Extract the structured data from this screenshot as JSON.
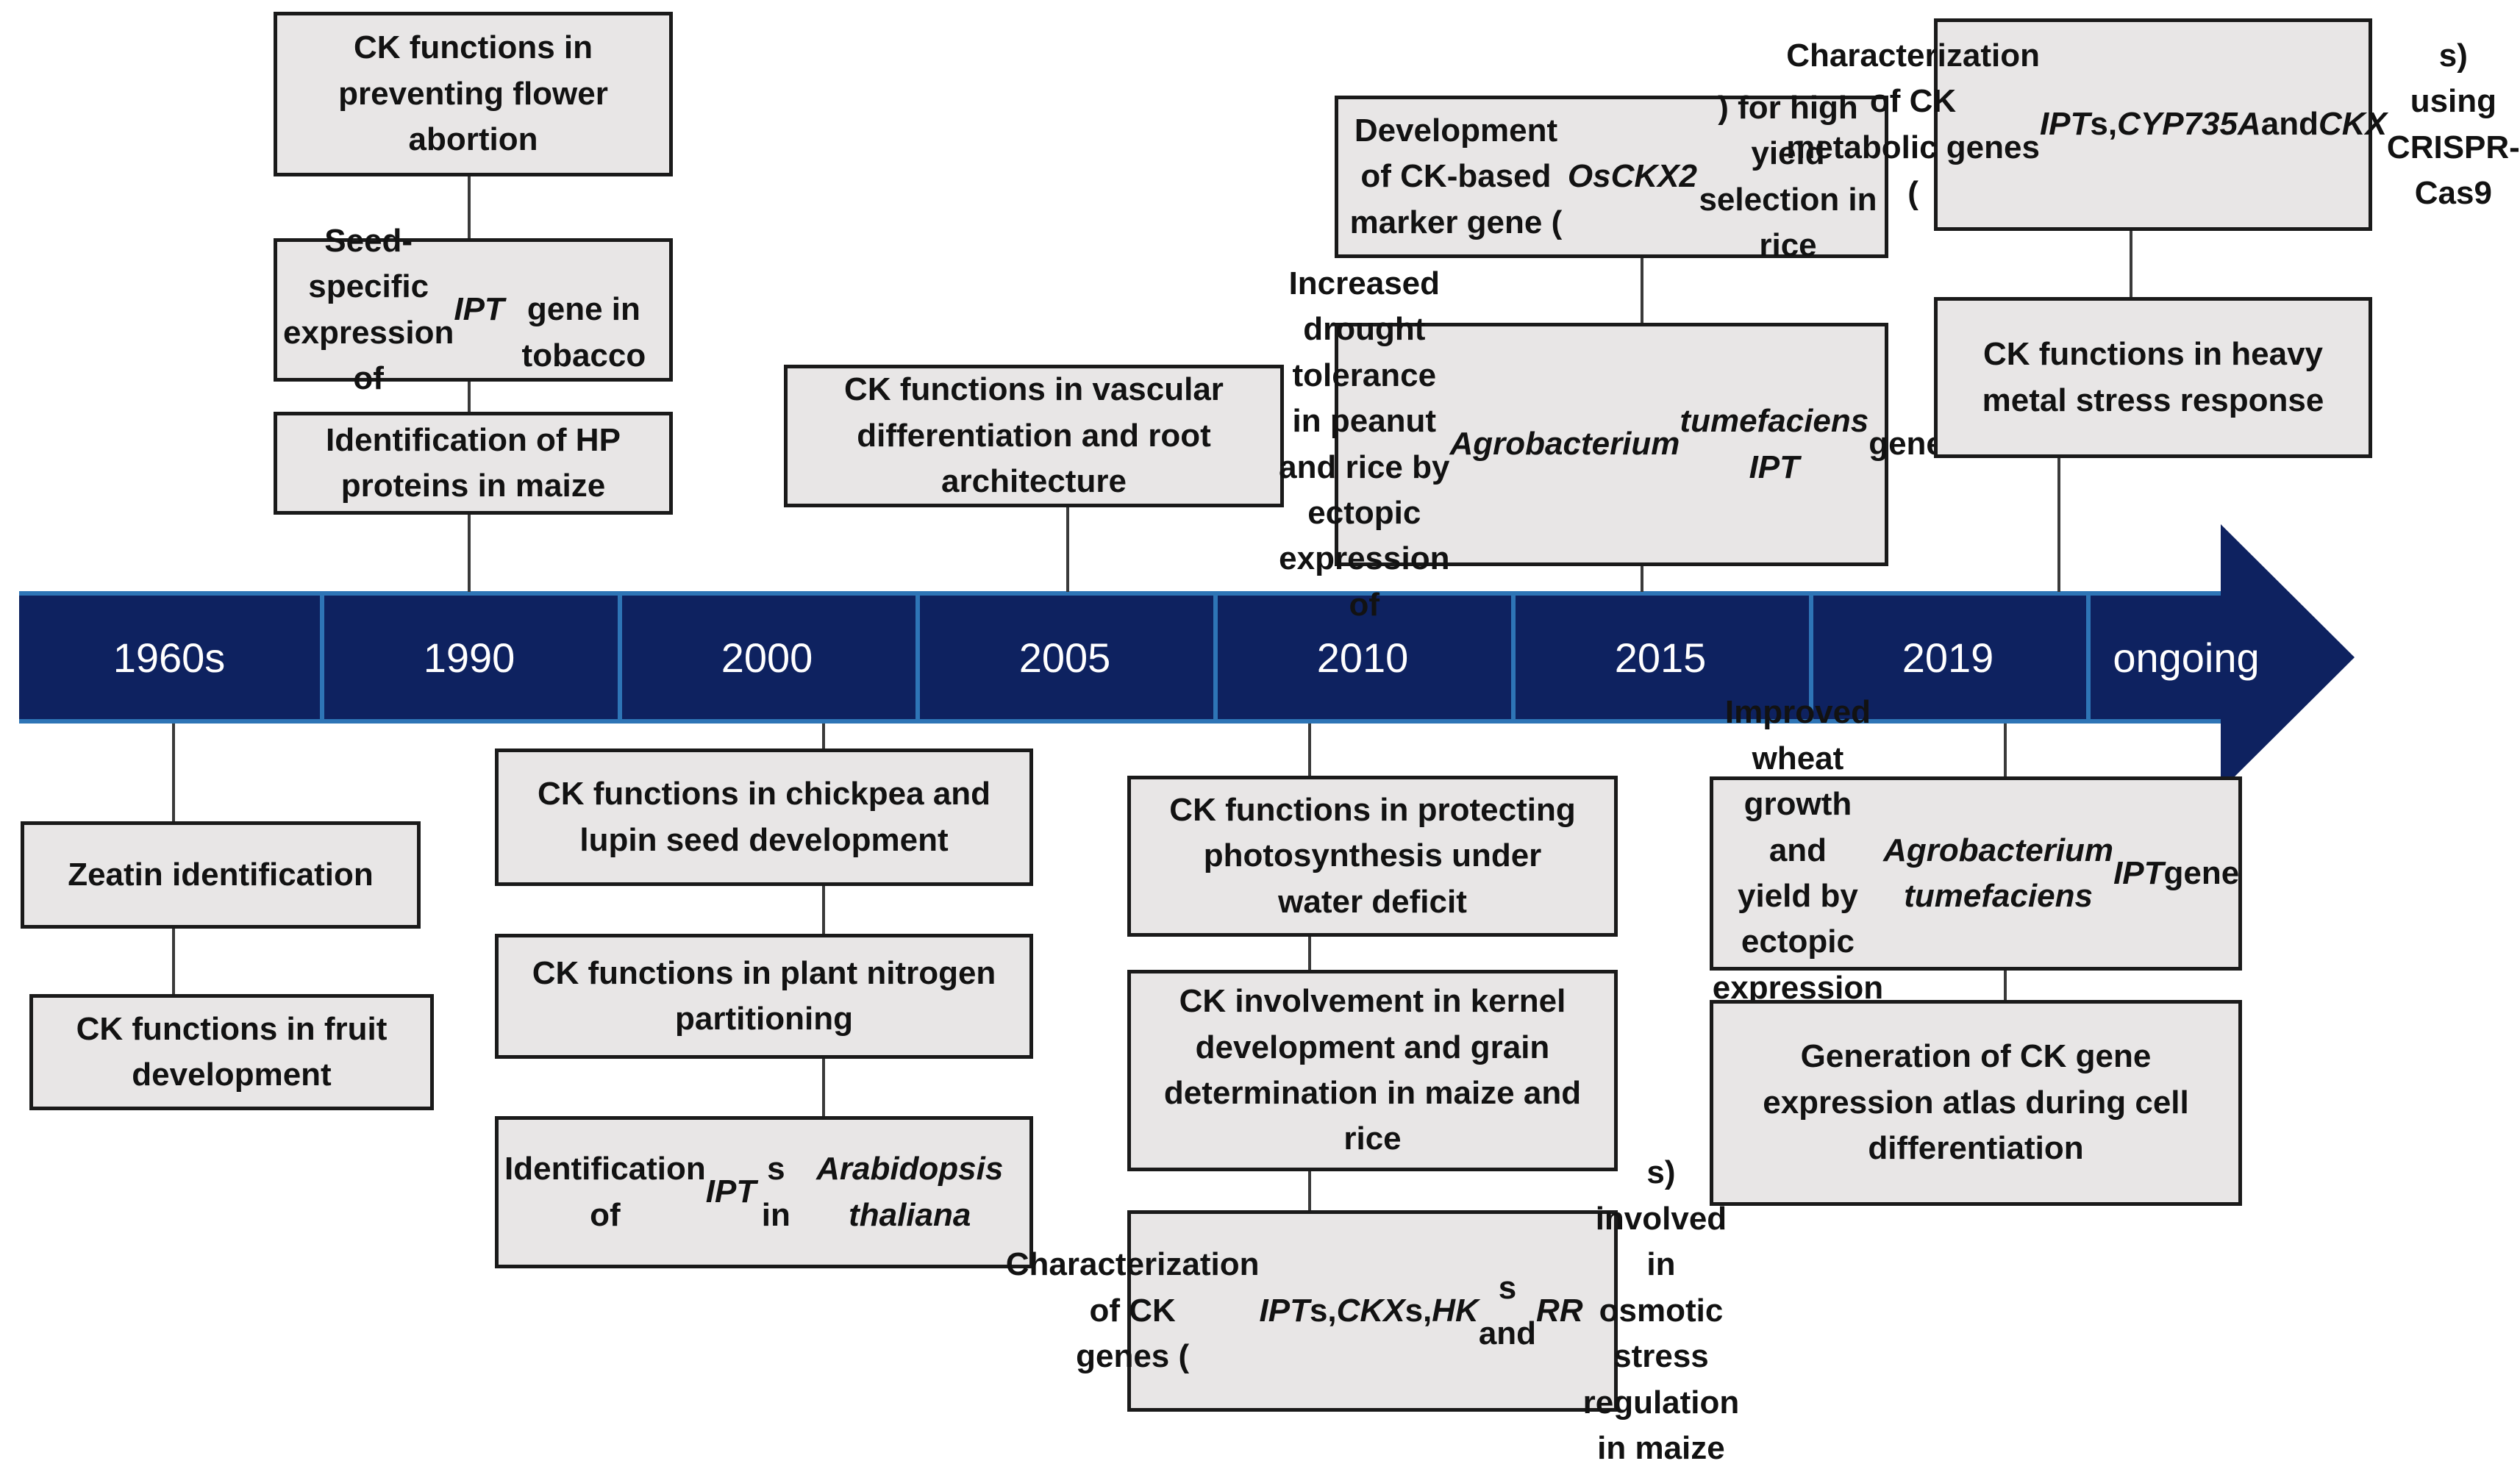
{
  "timeline": {
    "labels": [
      "1960s",
      "1990",
      "2000",
      "2005",
      "2010",
      "2015",
      "2019",
      "ongoing"
    ],
    "band_color": "#0E2260",
    "edge_color": "#2E75B6",
    "label_text_color": "#FFFFFF"
  },
  "box_style": {
    "fill_color": "#E8E6E6",
    "border_color": "#1A1A1A",
    "text_color": "#121212"
  },
  "events": {
    "above_1990": [
      "CK functions in\npreventing flower\nabortion",
      "Seed-specific\nexpression of *IPT*\ngene in tobacco",
      "Identification of HP\nproteins in maize"
    ],
    "above_2005": [
      "CK functions in vascular\ndifferentiation and root\narchitecture"
    ],
    "above_2015": [
      "Development of CK-based\nmarker gene (*OsCKX2*) for high\nyield selection in rice",
      "Increased drought tolerance\nin peanut and rice by ectopic\nexpression of *Agrobacterium*\n*tumefaciens IPT* gene"
    ],
    "above_2019_ongoing": [
      "Characterization of CK\nmetabolic genes (*IPT*s,\n*CYP735A* and *CKX*s)\nusing CRISPR-Cas9",
      "CK functions in heavy\nmetal stress response"
    ],
    "below_1960s": [
      "Zeatin identification",
      "CK functions in fruit\ndevelopment"
    ],
    "below_2000": [
      "CK functions in chickpea and\nlupin seed development",
      "CK functions in plant nitrogen\npartitioning",
      "Identification of *IPT*s in\n*Arabidopsis thaliana*"
    ],
    "below_2010": [
      "CK functions in protecting\nphotosynthesis under\nwater deficit",
      "CK involvement in kernel\ndevelopment and grain\ndetermination in maize and\nrice",
      "Characterization of CK\ngenes (*IPT*s, *CKX*s, *HK*s and\n*RR*s) involved in osmotic\nstress regulation in maize"
    ],
    "below_2019": [
      "Improved wheat growth and\nyield by ectopic expression of\n*Agrobacterium tumefaciens*\n*IPT* gene",
      "Generation of CK gene\nexpression atlas during cell\ndifferentiation"
    ]
  }
}
